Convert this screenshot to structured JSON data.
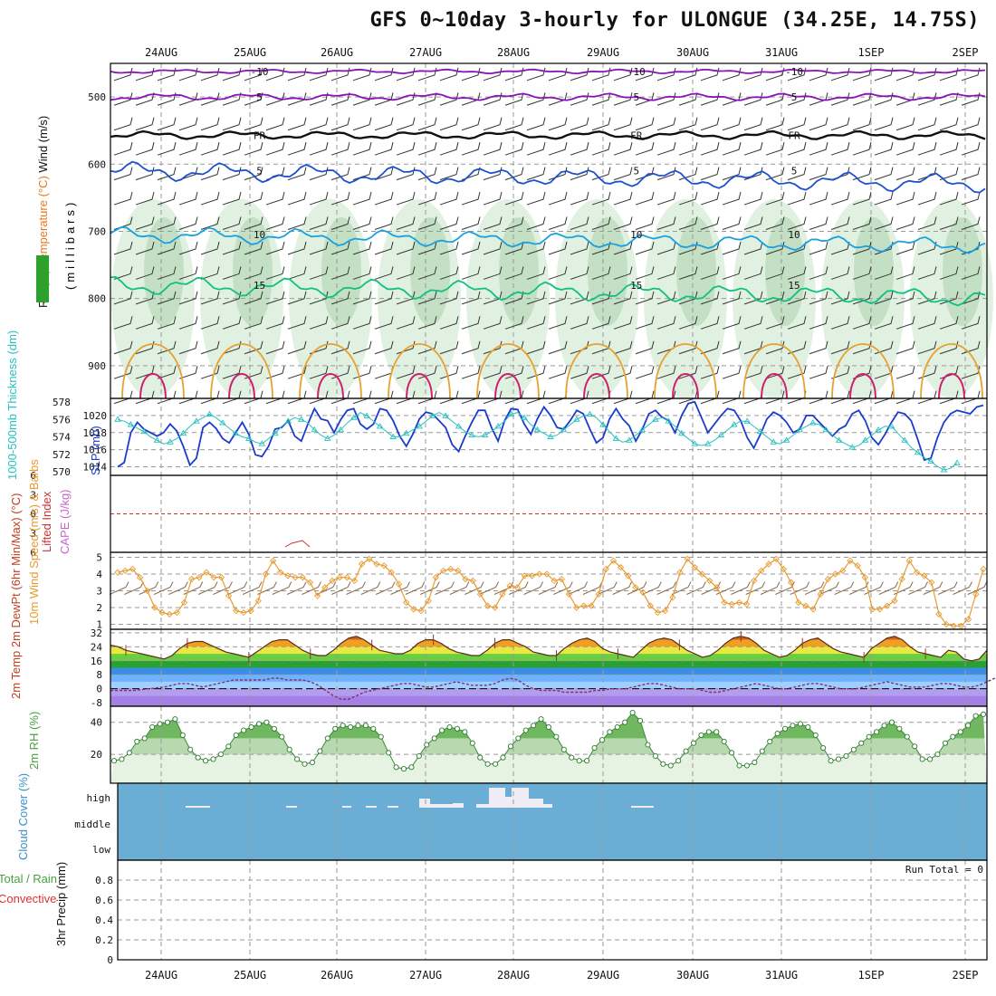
{
  "title": "GFS 0~10day 3-hourly for ULONGUE (34.25E, 14.75S)",
  "dates": [
    "24AUG",
    "25AUG",
    "26AUG",
    "27AUG",
    "28AUG",
    "29AUG",
    "30AUG",
    "31AUG",
    "1SEP",
    "2SEP"
  ],
  "run_total": "Run Total = 0",
  "colors": {
    "temp_violet": "#8b12b8",
    "temp_blue": "#1e50d0",
    "temp_lblue": "#1aa0e0",
    "temp_green": "#10c080",
    "temp_orange": "#e8a030",
    "temp_red": "#d02070",
    "slp": "#1a3ccc",
    "thick": "#28c0c0",
    "wind10": "#e89a30",
    "rh_green": "#4aa040",
    "cloud": "#6aaed6",
    "lifted": "#d03030"
  },
  "chart_data": [
    {
      "type": "contour",
      "panel": "upper-air",
      "ylabel_parts": [
        "Wind (m/s)",
        "Temperature (°C)",
        "RH (%)"
      ],
      "yunit": "(millibars)",
      "yticks": [
        500,
        600,
        700,
        800,
        900
      ],
      "ylim": [
        1000,
        450
      ],
      "temperature_contours": [
        "-10",
        "5",
        "FR",
        "5",
        "10",
        "15"
      ],
      "rh_contours": [
        "10",
        "30",
        "50"
      ]
    },
    {
      "type": "line",
      "panel": "slp-thickness",
      "ylabel_left": "1000-500mb Thickness (dm)",
      "ylabel_right": "SLP (mb)",
      "yticks_left": [
        570,
        572,
        574,
        576,
        578
      ],
      "yticks_right": [
        1014,
        1016,
        1018,
        1020
      ],
      "ylim_left": [
        570,
        578
      ],
      "ylim_right": [
        1013,
        1022
      ],
      "series": [
        {
          "name": "SLP",
          "values": [
            1014,
            1014.5,
            1018,
            1019.2,
            1018.4,
            1018,
            1017.6,
            1018,
            1019,
            1018.2,
            1016.4,
            1014.2,
            1015,
            1018.6,
            1019.2,
            1018.5,
            1017.3,
            1016.8,
            1018,
            1019.2,
            1017.8,
            1015.4,
            1015.2,
            1016.4,
            1018.4,
            1018.6,
            1019.4,
            1017.6,
            1017,
            1019,
            1020.8,
            1019.6,
            1019.4,
            1018,
            1019.5,
            1020.6,
            1020.8,
            1019,
            1018.4,
            1019,
            1020.8,
            1020.6,
            1019.4,
            1017.6,
            1016.4,
            1017.8,
            1019.6,
            1020.4,
            1020.2,
            1019.4,
            1018.6,
            1016.6,
            1015.8,
            1017.6,
            1019.2,
            1020.6,
            1020.6,
            1018.6,
            1017,
            1019.4,
            1020.8,
            1020.7,
            1019,
            1017.8,
            1019.6,
            1021,
            1020,
            1018.6,
            1018.4,
            1019.4,
            1020.6,
            1020.2,
            1018.4,
            1016.8,
            1017.4,
            1019.6,
            1020.8,
            1019.6,
            1018.8,
            1017,
            1018.4,
            1020.2,
            1020.6,
            1019.8,
            1019.4,
            1018,
            1020,
            1021.4,
            1021.6,
            1019.8,
            1018,
            1019,
            1020,
            1020.8,
            1020.6,
            1019.4,
            1017.4,
            1016.2,
            1017.8,
            1019.6,
            1020.4,
            1020,
            1019.2,
            1018,
            1018.4,
            1020,
            1020,
            1019.2,
            1018.4,
            1017.6,
            1018.4,
            1018.8,
            1020.2,
            1020.6,
            1019.4,
            1017.4,
            1016.6,
            1017.8,
            1019.2,
            1020.4,
            1020.2,
            1019.4,
            1017.2,
            1014.8,
            1015,
            1017.4,
            1019.2,
            1020.2,
            1020.6,
            1020.4,
            1020.2,
            1021,
            1021.2
          ]
        },
        {
          "name": "Thickness",
          "values": [
            576,
            575.8,
            575.4,
            575,
            574.6,
            574,
            573.6,
            573.2,
            573.4,
            573.8,
            574.4,
            575.2,
            575.8,
            576.2,
            576.6,
            576.2,
            575.6,
            575,
            574.4,
            574,
            573.8,
            573.4,
            573.2,
            573.8,
            574.4,
            575.2,
            575.8,
            576.2,
            576,
            575.6,
            574.8,
            574.2,
            573.8,
            574.2,
            574.8,
            575.6,
            576.2,
            576.8,
            576.4,
            575.8,
            575.2,
            574.6,
            574,
            574,
            574.4,
            574.8,
            575.2,
            575.8,
            576.4,
            576.8,
            576.4,
            575.8,
            575.2,
            574.6,
            574.2,
            574,
            574.2,
            574.6,
            575.2,
            575.8,
            576.6,
            576.8,
            576.2,
            575.4,
            574.8,
            574.4,
            574,
            574.2,
            574.8,
            575.4,
            576,
            576.4,
            576.6,
            576.2,
            575.4,
            574.6,
            573.8,
            573.4,
            573.6,
            574.2,
            574.8,
            575.4,
            576,
            576.2,
            575.8,
            575.2,
            574.4,
            573.8,
            573.2,
            573,
            573.2,
            573.6,
            574.2,
            574.8,
            575.4,
            575.8,
            575.8,
            575.2,
            574.6,
            574,
            573.4,
            573.2,
            573.6,
            574.2,
            574.8,
            575.2,
            575.6,
            575.4,
            574.8,
            574.2,
            573.6,
            573.2,
            572.8,
            573,
            573.6,
            574.2,
            574.8,
            575.2,
            575.2,
            574.4,
            573.6,
            572.8,
            572.2,
            571.6,
            571.2,
            570.6,
            570.2,
            570.4,
            571
          ]
        }
      ]
    },
    {
      "type": "line",
      "panel": "stability",
      "ylabel_left": "Lifted Index",
      "ylabel_right": "CAPE (J/kg)",
      "yticks_left": [
        -6,
        -3,
        0,
        3,
        6
      ],
      "ylim": [
        -6,
        6
      ]
    },
    {
      "type": "line",
      "panel": "10m-wind",
      "ylabel": "10m Wind Speed (m/s) & Barbs",
      "yticks": [
        1,
        2,
        3,
        4,
        5
      ],
      "ylim": [
        0.7,
        5.3
      ],
      "series": [
        {
          "name": "10m Wind Speed",
          "values": [
            4.1,
            4.2,
            4.3,
            3.8,
            3,
            2,
            1.7,
            1.6,
            1.7,
            2.3,
            3.7,
            3.8,
            4.1,
            3.8,
            3.8,
            2.7,
            1.8,
            1.7,
            1.8,
            2.4,
            4,
            4.8,
            4.1,
            3.9,
            3.8,
            3.8,
            3.5,
            2.7,
            3.2,
            3.6,
            3.8,
            3.8,
            3.6,
            4.6,
            4.9,
            4.6,
            4.5,
            4.1,
            3.4,
            2.3,
            1.9,
            1.8,
            2.4,
            3.8,
            4.2,
            4.3,
            4.2,
            3.7,
            3.6,
            2.8,
            2.1,
            2,
            2.8,
            3.3,
            3.2,
            3.9,
            3.9,
            4,
            4,
            3.6,
            3.7,
            2.8,
            2,
            2.1,
            2.1,
            2.8,
            4.3,
            4.8,
            4.4,
            3.9,
            3.2,
            2.9,
            2.1,
            1.7,
            1.8,
            2.6,
            4.1,
            4.9,
            4.4,
            4,
            3.6,
            3.2,
            2.3,
            2.2,
            2.3,
            2.2,
            3.6,
            4.2,
            4.6,
            4.9,
            4.3,
            3.5,
            2.3,
            2.1,
            1.9,
            2.8,
            3.7,
            4,
            4.2,
            4.8,
            4.5,
            3.8,
            1.9,
            1.9,
            2.1,
            2.4,
            3.7,
            4.8,
            4.1,
            3.9,
            3.5,
            1.6,
            1,
            0.9,
            0.9,
            1.3,
            2.8,
            4.3
          ]
        }
      ]
    },
    {
      "type": "area",
      "panel": "2m-temp",
      "ylabel": "2m Temp 2m DewPt (6hr Min/Max) (°C)",
      "yticks": [
        -8,
        0,
        8,
        16,
        24,
        32
      ],
      "ylim": [
        -10,
        34
      ],
      "series": [
        {
          "name": "2m Temp",
          "values": [
            25,
            24,
            22,
            21,
            20,
            19,
            18,
            17,
            19,
            23,
            26,
            27,
            27,
            25,
            23,
            21,
            20,
            19,
            18,
            21,
            24,
            27,
            28,
            28,
            25,
            22,
            20,
            19,
            19,
            22,
            26,
            29,
            30,
            28,
            25,
            22,
            21,
            20,
            20,
            22,
            26,
            28,
            28,
            26,
            23,
            21,
            20,
            19,
            19,
            22,
            26,
            28,
            28,
            26,
            24,
            21,
            20,
            19,
            19,
            23,
            26,
            28,
            29,
            27,
            23,
            21,
            20,
            19,
            18,
            22,
            26,
            28,
            29,
            28,
            25,
            22,
            20,
            18,
            19,
            22,
            26,
            29,
            30,
            29,
            26,
            22,
            20,
            18,
            19,
            22,
            26,
            28,
            29,
            26,
            23,
            21,
            20,
            19,
            18,
            23,
            26,
            29,
            30,
            28,
            24,
            21,
            20,
            19,
            18,
            22,
            21,
            17,
            16,
            17,
            22
          ]
        },
        {
          "name": "2m DewPt",
          "values": [
            -1,
            -1,
            -1,
            -1,
            -0.5,
            0,
            0.5,
            1,
            2,
            3,
            3,
            2,
            1,
            2,
            3,
            4,
            5,
            5,
            5,
            5,
            5,
            6,
            6,
            5,
            5,
            5,
            4,
            2,
            -1,
            -4,
            -6,
            -6,
            -4,
            -2,
            -1,
            0,
            1,
            2,
            3,
            3,
            2,
            1,
            1,
            2,
            3,
            4,
            3,
            2,
            2,
            2,
            3,
            5,
            6,
            5,
            2,
            0,
            -1,
            -1,
            -1,
            -2,
            -2,
            -2,
            -2,
            -1,
            -1,
            0,
            0,
            0,
            1,
            2,
            3,
            3,
            2,
            1,
            0,
            0,
            0,
            -1,
            -2,
            -2,
            -1,
            0,
            1,
            2,
            3,
            2,
            1,
            0,
            0,
            1,
            2,
            3,
            3,
            2,
            1,
            0,
            0,
            0,
            1,
            2,
            3,
            4,
            3,
            2,
            1,
            1,
            1,
            2,
            3,
            3,
            2,
            1,
            1,
            2,
            4,
            6,
            8
          ]
        }
      ]
    },
    {
      "type": "area",
      "panel": "2m-rh",
      "ylabel": "2m RH (%)",
      "yticks": [
        20,
        40
      ],
      "ylim": [
        2,
        50
      ],
      "series": [
        {
          "name": "2m RH",
          "values": [
            16,
            17,
            21,
            28,
            30,
            37,
            39,
            40,
            42,
            32,
            23,
            18,
            16,
            17,
            20,
            25,
            32,
            35,
            37,
            39,
            40,
            36,
            31,
            23,
            17,
            14,
            15,
            22,
            30,
            36,
            38,
            37,
            38,
            38,
            36,
            31,
            21,
            12,
            11,
            12,
            19,
            26,
            30,
            35,
            37,
            36,
            34,
            27,
            18,
            14,
            14,
            18,
            25,
            30,
            35,
            38,
            42,
            37,
            31,
            23,
            18,
            16,
            16,
            24,
            29,
            34,
            37,
            40,
            46,
            41,
            26,
            19,
            14,
            13,
            16,
            22,
            27,
            32,
            34,
            34,
            28,
            21,
            13,
            13,
            15,
            22,
            28,
            33,
            36,
            38,
            39,
            37,
            32,
            24,
            16,
            17,
            19,
            23,
            27,
            31,
            34,
            38,
            40,
            36,
            31,
            25,
            17,
            17,
            20,
            27,
            31,
            34,
            38,
            44,
            45
          ]
        }
      ]
    },
    {
      "type": "heatmap",
      "panel": "cloud-cover",
      "ylabel": "Cloud Cover (%)",
      "levels": [
        "high",
        "middle",
        "low"
      ]
    },
    {
      "type": "bar",
      "panel": "precip",
      "ylabel_parts": [
        "Total / Rain",
        "Convective",
        "3hr Precip (mm)"
      ],
      "yticks": [
        0,
        0.2,
        0.4,
        0.6,
        0.8
      ],
      "ylim": [
        0,
        1
      ],
      "values": []
    }
  ]
}
